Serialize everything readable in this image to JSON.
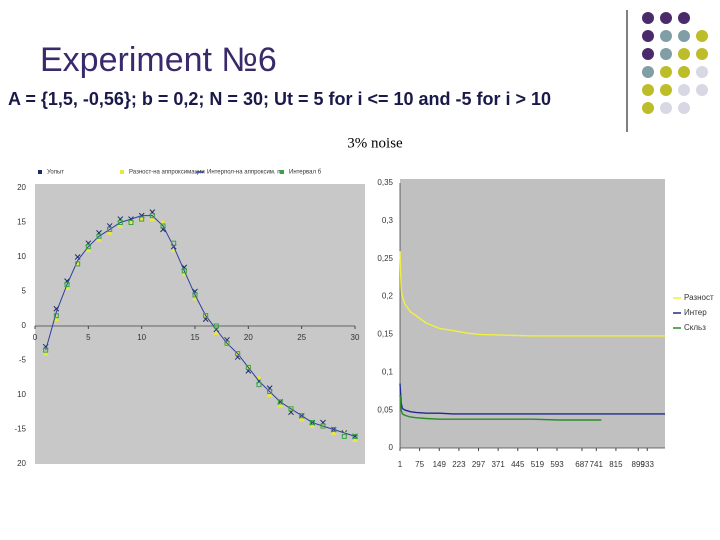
{
  "title": "Experiment №6",
  "subtitle": "A = {1,5, -0,56}; b = 0,2; N = 30; Ut = 5 for i <= 10 and -5 for i > 10",
  "note": "3% noise",
  "chart_data": [
    {
      "type": "line",
      "x": [
        1,
        2,
        3,
        4,
        5,
        6,
        7,
        8,
        9,
        10,
        11,
        12,
        13,
        14,
        15,
        16,
        17,
        18,
        19,
        20,
        21,
        22,
        23,
        24,
        25,
        26,
        27,
        28,
        29,
        30
      ],
      "series": [
        {
          "name": "Уопыт",
          "color": "#1f2a6b",
          "marker": "x",
          "values": [
            -3,
            2.5,
            6.5,
            10,
            12,
            13.5,
            14.5,
            15.5,
            15.5,
            16,
            16.5,
            14,
            11.5,
            8.5,
            5,
            1,
            -0.5,
            -2,
            -4.5,
            -6.5,
            -8,
            -9,
            -11,
            -12.5,
            -13,
            -14,
            -14,
            -15,
            -15.5,
            -16
          ]
        },
        {
          "name": "Разност-на аппроксимации",
          "color": "#e8e840",
          "marker": "triangle",
          "values": [
            -4,
            1,
            5.5,
            9,
            11,
            12.5,
            13.5,
            14.5,
            15,
            15.5,
            15.5,
            15,
            11,
            7.5,
            4,
            1.5,
            -1,
            -2.5,
            -4,
            -6,
            -7.5,
            -10,
            -11.5,
            -12,
            -13.5,
            -14.5,
            -14.5,
            -15.5,
            -15.5,
            -16.5
          ]
        },
        {
          "name": "Интерпол-на аппроксим. по",
          "color": "#2e3f9e",
          "marker": "line",
          "values": [
            -3.5,
            2,
            6,
            9.5,
            11.5,
            13,
            14,
            15,
            15.5,
            16,
            16,
            14.5,
            11.5,
            8,
            4.5,
            1.5,
            -0.5,
            -2.5,
            -4,
            -6,
            -8,
            -9.5,
            -11,
            -12,
            -13,
            -14,
            -14.5,
            -15,
            -15.5,
            -16
          ]
        },
        {
          "name": "Интервал б",
          "color": "#3aa04a",
          "marker": "square",
          "values": [
            -3.5,
            1.5,
            6,
            9,
            11.5,
            13,
            14,
            15,
            15,
            15.5,
            16,
            14.5,
            12,
            8,
            4.5,
            1.5,
            0,
            -2.5,
            -4,
            -6,
            -8.5,
            -9.5,
            -11,
            -12,
            -13,
            -14,
            -14.5,
            -15,
            -16,
            -16
          ]
        }
      ],
      "xlim": [
        0,
        30
      ],
      "xticks": [
        0,
        5,
        10,
        15,
        20,
        25,
        30
      ],
      "ylim": [
        -20,
        20
      ],
      "yticks": [
        20,
        15,
        10,
        5,
        0,
        -5,
        {
          "value": -10,
          "label": "10"
        },
        -15,
        {
          "value": -20,
          "label": "20"
        }
      ],
      "legend": "top",
      "background": "#c8c8c8"
    },
    {
      "type": "line",
      "x": [
        1,
        5,
        10,
        20,
        40,
        60,
        100,
        150,
        200,
        250,
        300,
        400,
        500,
        600,
        700,
        760,
        800,
        900,
        1000
      ],
      "series": [
        {
          "name": "Разност",
          "color": "#f0f040",
          "marker": "line",
          "values": [
            0.26,
            0.21,
            0.2,
            0.19,
            0.18,
            0.175,
            0.165,
            0.158,
            0.155,
            0.152,
            0.15,
            0.149,
            0.148,
            0.148,
            0.148,
            0.148,
            0.148,
            0.148,
            0.148
          ]
        },
        {
          "name": "Интер",
          "color": "#1f2a8b",
          "marker": "line",
          "values": [
            0.085,
            0.06,
            0.052,
            0.05,
            0.048,
            0.047,
            0.046,
            0.046,
            0.045,
            0.045,
            0.045,
            0.045,
            0.045,
            0.045,
            0.045,
            0.045,
            0.045,
            0.045,
            0.045
          ]
        },
        {
          "name": "Скльз",
          "color": "#2a8a2a",
          "marker": "line",
          "values": [
            0.07,
            0.05,
            0.045,
            0.043,
            0.041,
            0.04,
            0.039,
            0.038,
            0.038,
            0.038,
            0.038,
            0.038,
            0.038,
            0.037,
            0.037,
            0.037,
            null,
            null,
            null
          ]
        }
      ],
      "xlim": [
        1,
        1000
      ],
      "xticks": [
        1,
        75,
        149,
        223,
        297,
        371,
        445,
        519,
        593,
        687,
        741,
        815,
        899,
        933
      ],
      "ylim": [
        0,
        0.35
      ],
      "yticks": [
        {
          "value": 0.35,
          "label": "0,35"
        },
        {
          "value": 0.3,
          "label": "0,3"
        },
        {
          "value": 0.25,
          "label": "0,25"
        },
        {
          "value": 0.2,
          "label": "0,2"
        },
        {
          "value": 0.15,
          "label": "0,15"
        },
        {
          "value": 0.1,
          "label": "0,1"
        },
        {
          "value": 0.05,
          "label": "0,05"
        },
        0
      ],
      "legend": "right",
      "background": "#c0c0c0"
    }
  ]
}
